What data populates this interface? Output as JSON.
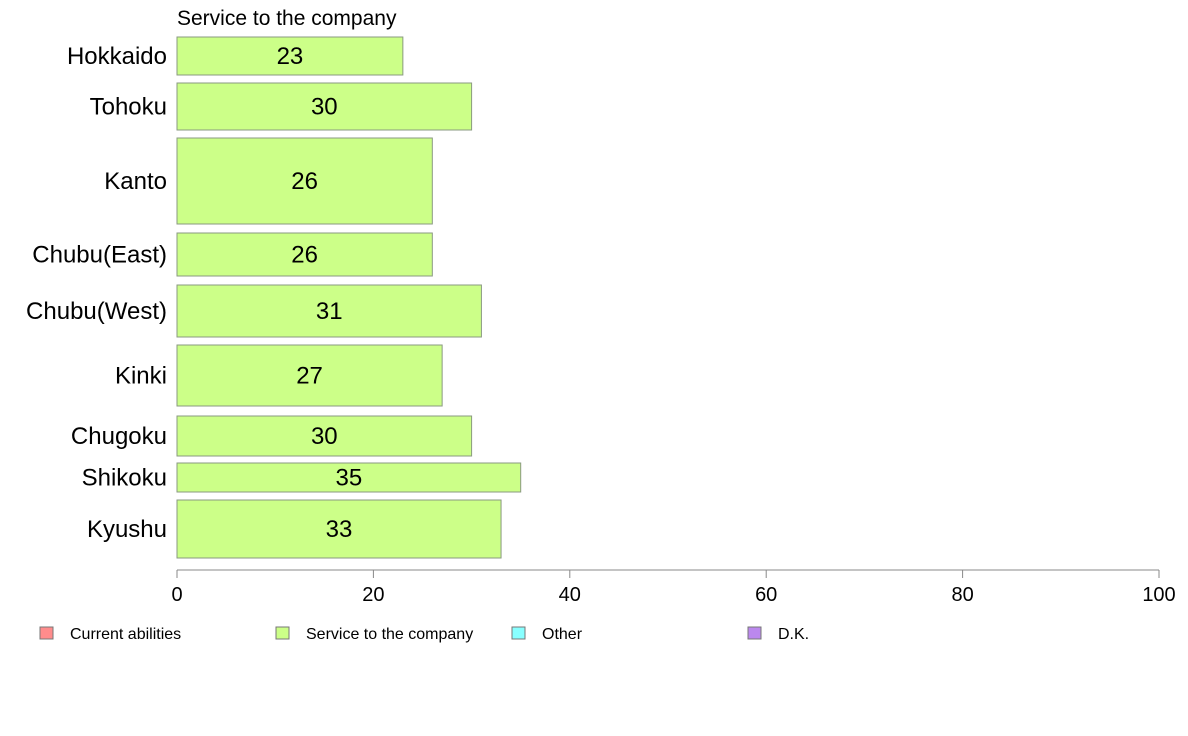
{
  "chart_data": {
    "type": "bar",
    "orientation": "horizontal",
    "title": "Service to the company",
    "categories": [
      "Hokkaido",
      "Tohoku",
      "Kanto",
      "Chubu(East)",
      "Chubu(West)",
      "Kinki",
      "Chugoku",
      "Shikoku",
      "Kyushu"
    ],
    "series": [
      {
        "name": "Service to the company",
        "values": [
          23,
          30,
          26,
          26,
          31,
          27,
          30,
          35,
          33
        ],
        "color": "#ccff88"
      }
    ],
    "data_labels": [
      "23",
      "30",
      "26",
      "26",
      "31",
      "27",
      "30",
      "35",
      "33"
    ],
    "xlim": [
      0,
      100
    ],
    "xticks": [
      "0",
      "20",
      "40",
      "60",
      "80",
      "100"
    ],
    "grid": false,
    "legend_position": "bottom",
    "legend": [
      {
        "label": "Current abilities",
        "color": "#ff8c8c"
      },
      {
        "label": "Service to the company",
        "color": "#ccff88"
      },
      {
        "label": "Other",
        "color": "#88ffff"
      },
      {
        "label": "D.K.",
        "color": "#bb88ee"
      }
    ]
  }
}
